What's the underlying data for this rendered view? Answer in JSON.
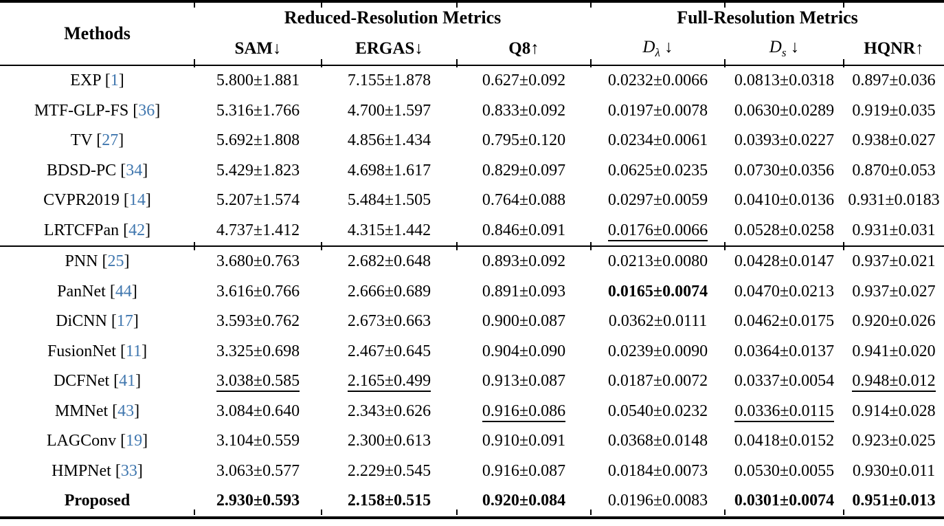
{
  "accent_color": "#3f76ae",
  "header": {
    "methods_label": "Methods",
    "groups": [
      {
        "label": "Reduced-Resolution Metrics"
      },
      {
        "label": "Full-Resolution Metrics"
      }
    ],
    "metrics": [
      {
        "label": "SAM",
        "arrow": "↓",
        "bold": true,
        "math": false
      },
      {
        "label": "ERGAS",
        "arrow": "↓",
        "bold": true,
        "math": false
      },
      {
        "label": "Q8",
        "arrow": "↑",
        "bold": true,
        "math": false
      },
      {
        "base": "D",
        "sub": "λ",
        "arrow": "↓",
        "bold": false,
        "math": true
      },
      {
        "base": "D",
        "sub": "s",
        "arrow": "↓",
        "bold": false,
        "math": true
      },
      {
        "label": "HQNR",
        "arrow": "↑",
        "bold": true,
        "math": false
      }
    ]
  },
  "rows": [
    {
      "method": "EXP",
      "cite": "1",
      "values": [
        {
          "text": "5.800±1.881"
        },
        {
          "text": "7.155±1.878"
        },
        {
          "text": "0.627±0.092"
        },
        {
          "text": "0.0232±0.0066"
        },
        {
          "text": "0.0813±0.0318"
        },
        {
          "text": "0.897±0.036"
        }
      ]
    },
    {
      "method": "MTF-GLP-FS",
      "cite": "36",
      "values": [
        {
          "text": "5.316±1.766"
        },
        {
          "text": "4.700±1.597"
        },
        {
          "text": "0.833±0.092"
        },
        {
          "text": "0.0197±0.0078"
        },
        {
          "text": "0.0630±0.0289"
        },
        {
          "text": "0.919±0.035"
        }
      ]
    },
    {
      "method": "TV",
      "cite": "27",
      "values": [
        {
          "text": "5.692±1.808"
        },
        {
          "text": "4.856±1.434"
        },
        {
          "text": "0.795±0.120"
        },
        {
          "text": "0.0234±0.0061"
        },
        {
          "text": "0.0393±0.0227"
        },
        {
          "text": "0.938±0.027"
        }
      ]
    },
    {
      "method": "BDSD-PC",
      "cite": "34",
      "values": [
        {
          "text": "5.429±1.823"
        },
        {
          "text": "4.698±1.617"
        },
        {
          "text": "0.829±0.097"
        },
        {
          "text": "0.0625±0.0235"
        },
        {
          "text": "0.0730±0.0356"
        },
        {
          "text": "0.870±0.053"
        }
      ]
    },
    {
      "method": "CVPR2019",
      "cite": "14",
      "values": [
        {
          "text": "5.207±1.574"
        },
        {
          "text": "5.484±1.505"
        },
        {
          "text": "0.764±0.088"
        },
        {
          "text": "0.0297±0.0059"
        },
        {
          "text": "0.0410±0.0136"
        },
        {
          "text": "0.931±0.0183"
        }
      ]
    },
    {
      "method": "LRTCFPan",
      "cite": "42",
      "values": [
        {
          "text": "4.737±1.412"
        },
        {
          "text": "4.315±1.442"
        },
        {
          "text": "0.846±0.091"
        },
        {
          "text": "0.0176±0.0066",
          "underline": true
        },
        {
          "text": "0.0528±0.0258"
        },
        {
          "text": "0.931±0.031"
        }
      ]
    },
    {
      "method": "PNN",
      "cite": "25",
      "group_start": true,
      "values": [
        {
          "text": "3.680±0.763"
        },
        {
          "text": "2.682±0.648"
        },
        {
          "text": "0.893±0.092"
        },
        {
          "text": "0.0213±0.0080"
        },
        {
          "text": "0.0428±0.0147"
        },
        {
          "text": "0.937±0.021"
        }
      ]
    },
    {
      "method": "PanNet",
      "cite": "44",
      "values": [
        {
          "text": "3.616±0.766"
        },
        {
          "text": "2.666±0.689"
        },
        {
          "text": "0.891±0.093"
        },
        {
          "text": "0.0165±0.0074",
          "bold": true
        },
        {
          "text": "0.0470±0.0213"
        },
        {
          "text": "0.937±0.027"
        }
      ]
    },
    {
      "method": "DiCNN",
      "cite": "17",
      "values": [
        {
          "text": "3.593±0.762"
        },
        {
          "text": "2.673±0.663"
        },
        {
          "text": "0.900±0.087"
        },
        {
          "text": "0.0362±0.0111"
        },
        {
          "text": "0.0462±0.0175"
        },
        {
          "text": "0.920±0.026"
        }
      ]
    },
    {
      "method": "FusionNet",
      "cite": "11",
      "values": [
        {
          "text": "3.325±0.698"
        },
        {
          "text": "2.467±0.645"
        },
        {
          "text": "0.904±0.090"
        },
        {
          "text": "0.0239±0.0090"
        },
        {
          "text": "0.0364±0.0137"
        },
        {
          "text": "0.941±0.020"
        }
      ]
    },
    {
      "method": "DCFNet",
      "cite": "41",
      "values": [
        {
          "text": "3.038±0.585",
          "underline": true
        },
        {
          "text": "2.165±0.499",
          "underline": true
        },
        {
          "text": "0.913±0.087"
        },
        {
          "text": "0.0187±0.0072"
        },
        {
          "text": "0.0337±0.0054"
        },
        {
          "text": "0.948±0.012",
          "underline": true
        }
      ]
    },
    {
      "method": "MMNet",
      "cite": "43",
      "values": [
        {
          "text": "3.084±0.640"
        },
        {
          "text": "2.343±0.626"
        },
        {
          "text": "0.916±0.086",
          "underline": true
        },
        {
          "text": "0.0540±0.0232"
        },
        {
          "text": "0.0336±0.0115",
          "underline": true
        },
        {
          "text": "0.914±0.028"
        }
      ]
    },
    {
      "method": "LAGConv",
      "cite": "19",
      "values": [
        {
          "text": "3.104±0.559"
        },
        {
          "text": "2.300±0.613"
        },
        {
          "text": "0.910±0.091"
        },
        {
          "text": "0.0368±0.0148"
        },
        {
          "text": "0.0418±0.0152"
        },
        {
          "text": "0.923±0.025"
        }
      ]
    },
    {
      "method": "HMPNet",
      "cite": "33",
      "values": [
        {
          "text": "3.063±0.577"
        },
        {
          "text": "2.229±0.545"
        },
        {
          "text": "0.916±0.087"
        },
        {
          "text": "0.0184±0.0073"
        },
        {
          "text": "0.0530±0.0055"
        },
        {
          "text": "0.930±0.011"
        }
      ]
    },
    {
      "method": "Proposed",
      "cite": null,
      "method_bold": true,
      "values": [
        {
          "text": "2.930±0.593",
          "bold": true
        },
        {
          "text": "2.158±0.515",
          "bold": true
        },
        {
          "text": "0.920±0.084",
          "bold": true
        },
        {
          "text": "0.0196±0.0083"
        },
        {
          "text": "0.0301±0.0074",
          "bold": true
        },
        {
          "text": "0.951±0.013",
          "bold": true
        }
      ]
    }
  ]
}
